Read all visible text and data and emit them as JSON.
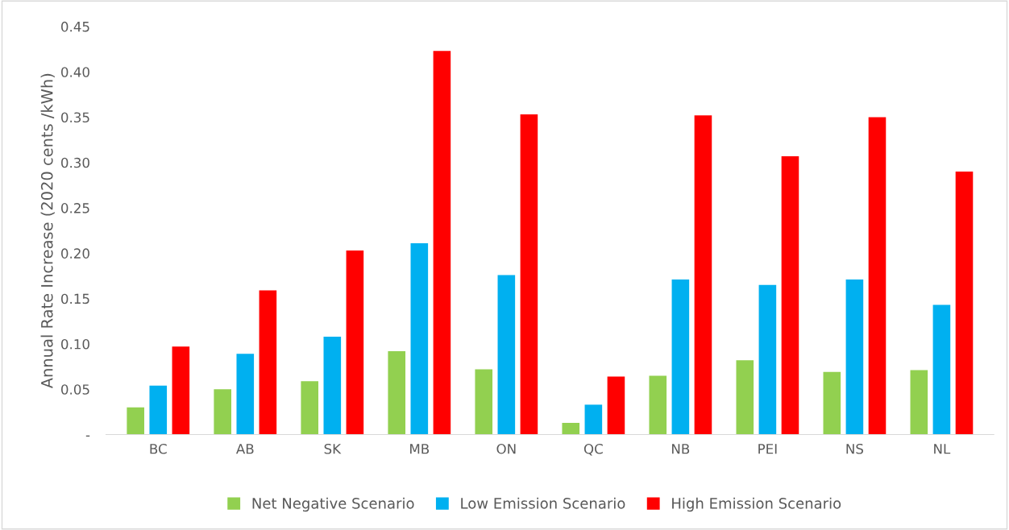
{
  "chart_data": {
    "type": "bar",
    "ylabel": "Annual Rate Increase (2020 cents /kWh)",
    "categories": [
      "BC",
      "AB",
      "SK",
      "MB",
      "ON",
      "QC",
      "NB",
      "PEI",
      "NS",
      "NL"
    ],
    "series": [
      {
        "name": "Net Negative Scenario",
        "color": "#92d050",
        "values": [
          0.03,
          0.05,
          0.059,
          0.092,
          0.072,
          0.013,
          0.065,
          0.082,
          0.069,
          0.071
        ]
      },
      {
        "name": "Low Emission Scenario",
        "color": "#00b0f0",
        "values": [
          0.054,
          0.089,
          0.108,
          0.211,
          0.176,
          0.033,
          0.171,
          0.165,
          0.171,
          0.143
        ]
      },
      {
        "name": "High Emission Scenario",
        "color": "#ff0000",
        "values": [
          0.097,
          0.159,
          0.203,
          0.423,
          0.353,
          0.064,
          0.352,
          0.307,
          0.35,
          0.29
        ]
      }
    ],
    "ylim": [
      0,
      0.45
    ],
    "yticks": [
      {
        "value": 0,
        "label": "-"
      },
      {
        "value": 0.05,
        "label": "0.05"
      },
      {
        "value": 0.1,
        "label": "0.10"
      },
      {
        "value": 0.15,
        "label": "0.15"
      },
      {
        "value": 0.2,
        "label": "0.20"
      },
      {
        "value": 0.25,
        "label": "0.25"
      },
      {
        "value": 0.3,
        "label": "0.30"
      },
      {
        "value": 0.35,
        "label": "0.35"
      },
      {
        "value": 0.4,
        "label": "0.40"
      },
      {
        "value": 0.45,
        "label": "0.45"
      }
    ],
    "grid": false,
    "legend": "bottom"
  }
}
